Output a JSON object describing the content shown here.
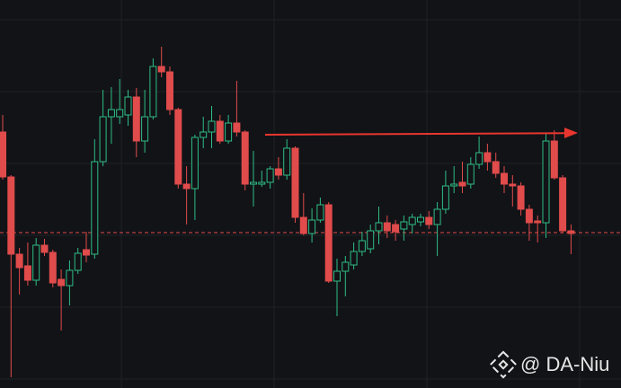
{
  "chart_data": {
    "type": "candlestick",
    "ylim": [
      0,
      432
    ],
    "up_color": "#2ebd85",
    "down_color": "#e04b4b",
    "price_line": 173,
    "price_line_color": "#e04b4b",
    "watermark": "@ DA-Niu",
    "open": [
      285,
      235,
      149,
      136,
      120,
      159,
      151,
      121,
      114,
      131,
      154,
      149,
      252,
      302,
      302,
      304,
      324,
      275,
      302,
      358,
      352,
      310,
      227,
      222,
      279,
      285,
      297,
      275,
      295,
      285,
      227,
      227,
      229,
      244,
      237,
      267,
      190,
      172,
      187,
      204,
      119,
      130,
      137,
      152,
      155,
      175,
      184,
      182,
      177,
      182,
      185,
      190,
      182,
      199,
      225,
      229,
      227,
      249,
      262,
      252,
      239,
      227,
      225,
      199,
      186,
      184,
      275,
      234,
      175
    ],
    "high": [
      304,
      237,
      156,
      162,
      167,
      166,
      154,
      132,
      142,
      156,
      174,
      277,
      332,
      335,
      344,
      332,
      334,
      332,
      367,
      380,
      358,
      312,
      247,
      282,
      302,
      314,
      304,
      304,
      342,
      287,
      264,
      242,
      247,
      257,
      277,
      269,
      217,
      200,
      212,
      207,
      144,
      147,
      162,
      174,
      182,
      202,
      192,
      187,
      192,
      194,
      194,
      197,
      207,
      242,
      247,
      252,
      257,
      280,
      272,
      262,
      247,
      237,
      229,
      204,
      192,
      284,
      287,
      237,
      182
    ],
    "low": [
      232,
      12,
      104,
      114,
      114,
      147,
      112,
      64,
      92,
      127,
      140,
      144,
      247,
      272,
      294,
      292,
      257,
      262,
      299,
      346,
      304,
      222,
      182,
      187,
      267,
      267,
      272,
      272,
      280,
      220,
      202,
      224,
      222,
      232,
      232,
      184,
      170,
      162,
      184,
      117,
      80,
      102,
      132,
      147,
      150,
      160,
      167,
      164,
      164,
      172,
      180,
      177,
      147,
      194,
      217,
      217,
      222,
      244,
      242,
      234,
      217,
      202,
      192,
      164,
      162,
      167,
      232,
      172,
      149
    ],
    "close": [
      235,
      149,
      134,
      120,
      159,
      151,
      117,
      114,
      131,
      150,
      148,
      252,
      302,
      310,
      310,
      324,
      275,
      302,
      358,
      352,
      310,
      227,
      222,
      279,
      285,
      297,
      275,
      295,
      285,
      227,
      229,
      229,
      244,
      237,
      267,
      190,
      172,
      187,
      204,
      119,
      130,
      140,
      152,
      164,
      175,
      184,
      175,
      174,
      185,
      190,
      190,
      182,
      199,
      225,
      227,
      225,
      249,
      262,
      252,
      239,
      227,
      225,
      199,
      184,
      184,
      275,
      234,
      175,
      172
    ]
  }
}
